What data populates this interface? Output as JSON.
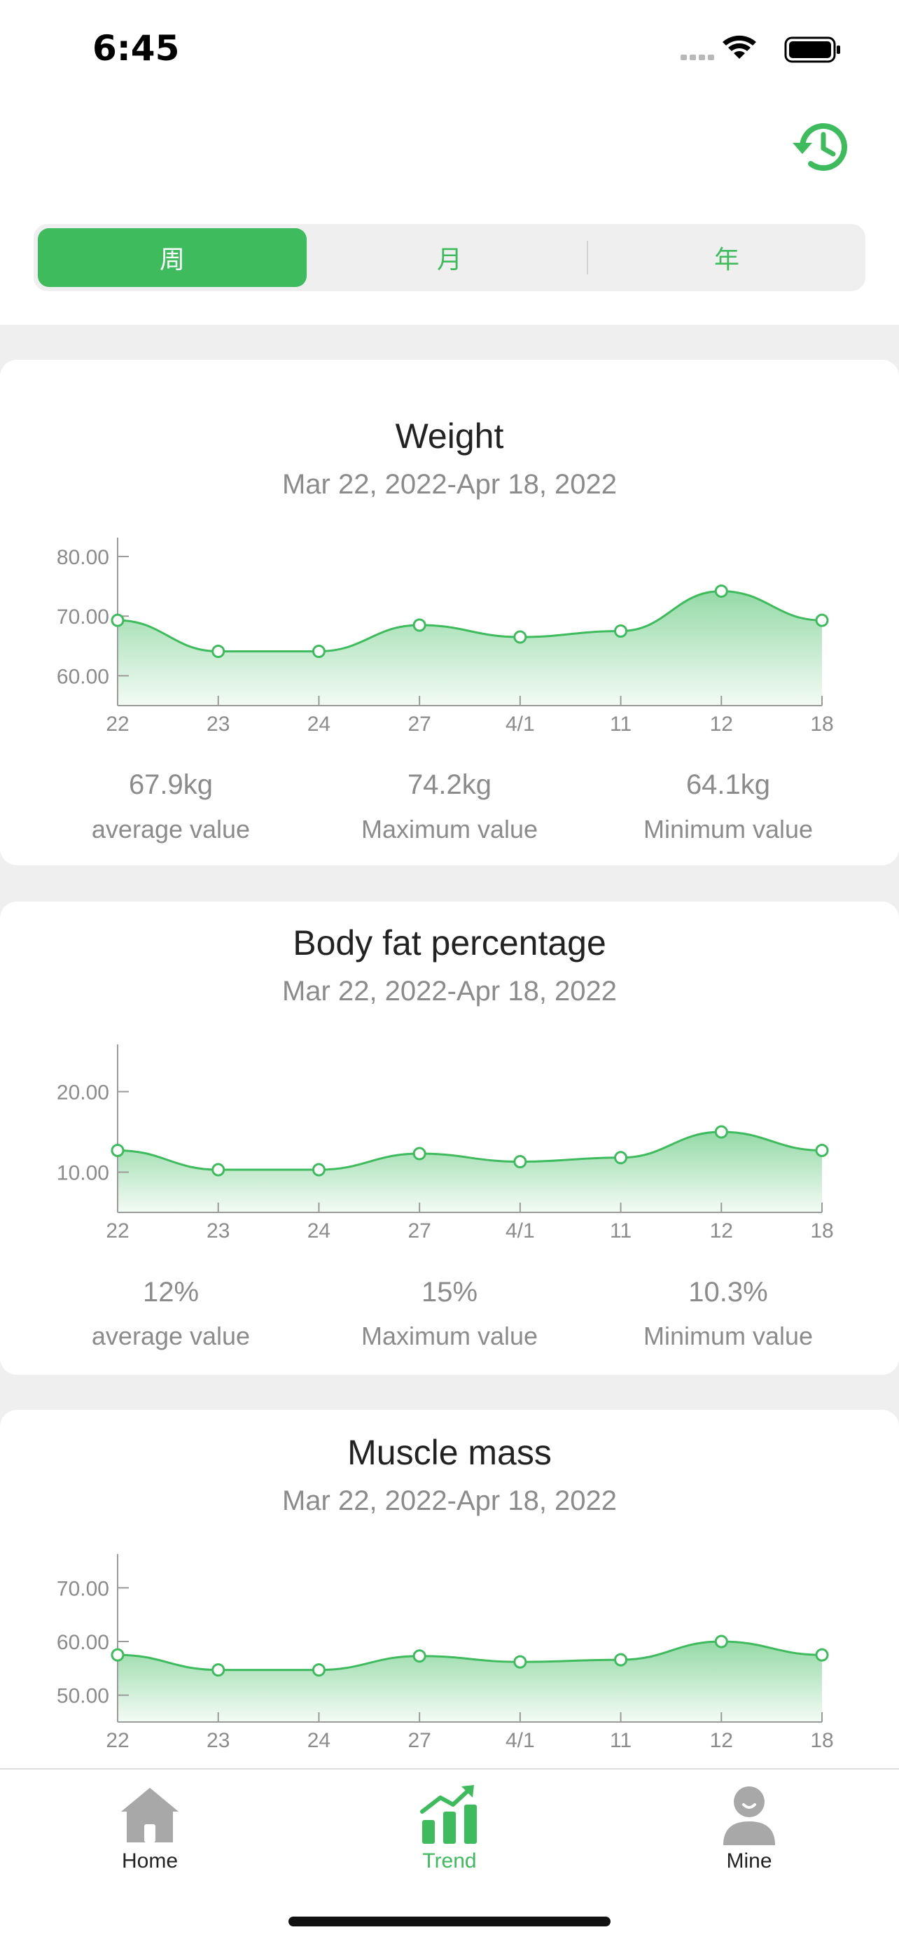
{
  "status_bar": {
    "time": "6:45"
  },
  "header": {
    "history_icon": "history-clock-icon"
  },
  "segments": {
    "items": [
      "周",
      "月",
      "年"
    ],
    "active_index": 0
  },
  "colors": {
    "accent": "#3dbb5d",
    "muted": "#8b8b8b",
    "tab_inactive": "#9a9a9a"
  },
  "cards": [
    {
      "title": "Weight",
      "range": "Mar 22, 2022-Apr 18, 2022",
      "chart_data": {
        "type": "area",
        "x": [
          "22",
          "23",
          "24",
          "27",
          "4/1",
          "11",
          "12",
          "18"
        ],
        "values": [
          69.3,
          64.1,
          64.1,
          68.5,
          66.5,
          67.5,
          74.2,
          69.3
        ],
        "yticks": [
          "60.00",
          "70.00",
          "80.00"
        ],
        "ylim": [
          55,
          82
        ]
      },
      "stats": [
        {
          "value": "67.9kg",
          "label": "average value"
        },
        {
          "value": "74.2kg",
          "label": "Maximum value"
        },
        {
          "value": "64.1kg",
          "label": "Minimum value"
        }
      ]
    },
    {
      "title": "Body fat percentage",
      "range": "Mar 22, 2022-Apr 18, 2022",
      "chart_data": {
        "type": "area",
        "x": [
          "22",
          "23",
          "24",
          "27",
          "4/1",
          "11",
          "12",
          "18"
        ],
        "values": [
          12.7,
          10.3,
          10.3,
          12.3,
          11.3,
          11.8,
          15.0,
          12.7
        ],
        "yticks": [
          "10.00",
          "20.00"
        ],
        "ylim": [
          5,
          25
        ]
      },
      "stats": [
        {
          "value": "12%",
          "label": "average value"
        },
        {
          "value": "15%",
          "label": "Maximum value"
        },
        {
          "value": "10.3%",
          "label": "Minimum value"
        }
      ]
    },
    {
      "title": "Muscle mass",
      "range": "Mar 22, 2022-Apr 18, 2022",
      "chart_data": {
        "type": "area",
        "x": [
          "22",
          "23",
          "24",
          "27",
          "4/1",
          "11",
          "12",
          "18"
        ],
        "values": [
          57.5,
          54.7,
          54.7,
          57.3,
          56.2,
          56.6,
          60.0,
          57.5
        ],
        "yticks": [
          "50.00",
          "60.00",
          "70.00"
        ],
        "ylim": [
          45,
          75
        ]
      },
      "stats": []
    }
  ],
  "tabbar": {
    "items": [
      {
        "label": "Home",
        "icon": "home-icon",
        "active": false
      },
      {
        "label": "Trend",
        "icon": "trend-chart-icon",
        "active": true
      },
      {
        "label": "Mine",
        "icon": "profile-icon",
        "active": false
      }
    ]
  }
}
